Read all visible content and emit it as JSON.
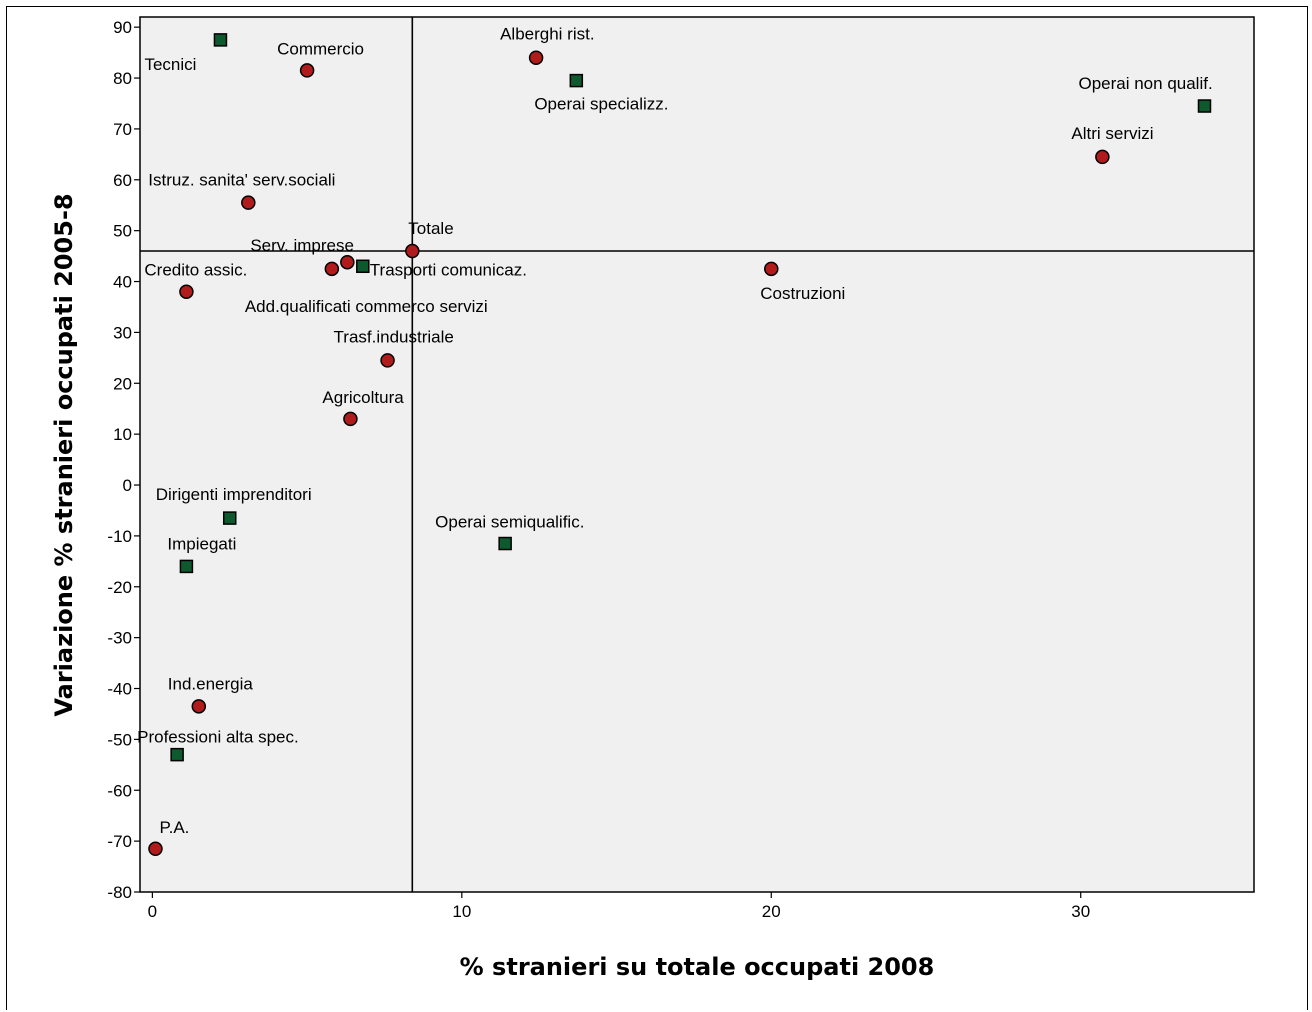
{
  "chart_data": {
    "type": "scatter",
    "xlabel": "% stranieri su totale occupati 2008",
    "ylabel": "Variazione % stranieri occupati 2005-8",
    "xlim": [
      -0.4,
      35.6
    ],
    "ylim": [
      -80,
      92
    ],
    "xticks": [
      0,
      10,
      20,
      30
    ],
    "yticks": [
      90,
      80,
      70,
      60,
      50,
      40,
      30,
      20,
      10,
      0,
      -10,
      -20,
      -30,
      -40,
      -50,
      -60,
      -70,
      -80
    ],
    "reference_lines": {
      "x": 8.4,
      "y": 46
    },
    "grid": false,
    "colors": {
      "circle_fill": "#b01c1c",
      "square_fill": "#0e5a2e",
      "plot_bg": "#f0f0f0"
    },
    "points": [
      {
        "label": "Tecnici",
        "x": 2.2,
        "y": 87.5,
        "marker": "square"
      },
      {
        "label": "Commercio",
        "x": 5.0,
        "y": 81.5,
        "marker": "circle"
      },
      {
        "label": "Alberghi rist.",
        "x": 12.4,
        "y": 84.0,
        "marker": "circle"
      },
      {
        "label": "Operai specializz.",
        "x": 13.7,
        "y": 79.5,
        "marker": "square"
      },
      {
        "label": "Operai non qualif.",
        "x": 34.0,
        "y": 74.5,
        "marker": "square"
      },
      {
        "label": "Altri servizi",
        "x": 30.7,
        "y": 64.5,
        "marker": "circle"
      },
      {
        "label": "Istruz. sanita' serv.sociali",
        "x": 3.1,
        "y": 55.5,
        "marker": "circle"
      },
      {
        "label": "Totale",
        "x": 8.4,
        "y": 46.0,
        "marker": "circle"
      },
      {
        "label": "Serv. imprese",
        "x": 6.3,
        "y": 43.8,
        "marker": "circle"
      },
      {
        "label": "Add.qualificati commerco servizi",
        "x": 5.8,
        "y": 42.5,
        "marker": "circle"
      },
      {
        "label": "Trasporti comunicaz.",
        "x": 6.8,
        "y": 43.0,
        "marker": "square"
      },
      {
        "label": "Credito assic.",
        "x": 1.1,
        "y": 38.0,
        "marker": "circle"
      },
      {
        "label": "Costruzioni",
        "x": 20.0,
        "y": 42.5,
        "marker": "circle"
      },
      {
        "label": "Trasf.industriale",
        "x": 7.6,
        "y": 24.5,
        "marker": "circle"
      },
      {
        "label": "Agricoltura",
        "x": 6.4,
        "y": 13.0,
        "marker": "circle"
      },
      {
        "label": "Dirigenti imprenditori",
        "x": 2.5,
        "y": -6.5,
        "marker": "square"
      },
      {
        "label": "Operai semiqualific.",
        "x": 11.4,
        "y": -11.5,
        "marker": "square"
      },
      {
        "label": "Impiegati",
        "x": 1.1,
        "y": -16.0,
        "marker": "square"
      },
      {
        "label": "Ind.energia",
        "x": 1.5,
        "y": -43.5,
        "marker": "circle"
      },
      {
        "label": "Professioni alta spec.",
        "x": 0.8,
        "y": -53.0,
        "marker": "square"
      },
      {
        "label": "P.A.",
        "x": 0.1,
        "y": -71.5,
        "marker": "circle"
      }
    ]
  }
}
